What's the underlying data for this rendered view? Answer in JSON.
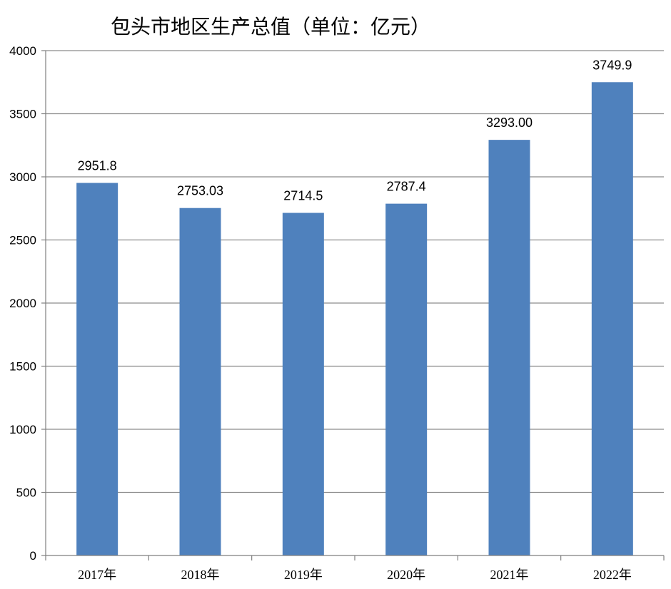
{
  "chart_data": {
    "type": "bar",
    "title": "包头市地区生产总值（单位：亿元）",
    "xlabel": "",
    "ylabel": "",
    "categories": [
      "2017年",
      "2018年",
      "2019年",
      "2020年",
      "2021年",
      "2022年"
    ],
    "values": [
      2951.8,
      2753.03,
      2714.5,
      2787.4,
      3293.0,
      3749.9
    ],
    "data_labels": [
      "2951.8",
      "2753.03",
      "2714.5",
      "2787.4",
      "3293.00",
      "3749.9"
    ],
    "yticks": [
      0,
      500,
      1000,
      1500,
      2000,
      2500,
      3000,
      3500,
      4000
    ],
    "ytick_labels": [
      "0",
      "500",
      "1000",
      "1500",
      "2000",
      "2500",
      "3000",
      "3500",
      "4000"
    ],
    "ylim": [
      0,
      4000
    ],
    "grid": true,
    "legend": "none",
    "colors": {
      "bar": "#4f81bd"
    }
  }
}
